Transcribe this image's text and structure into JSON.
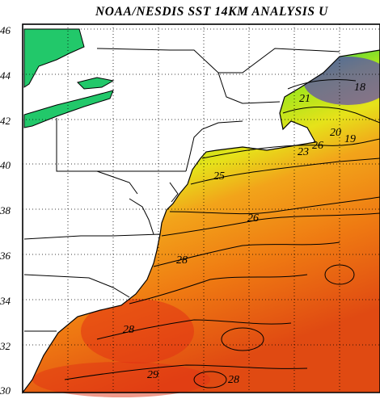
{
  "title": "NOAA/NESDIS SST 14KM ANALYSIS U",
  "lat_labels": [
    "46",
    "44",
    "42",
    "40",
    "38",
    "36",
    "34",
    "32",
    "30"
  ],
  "isotherm_labels": [
    "18",
    "21",
    "23",
    "26",
    "20",
    "19",
    "25",
    "26",
    "28",
    "28",
    "29",
    "28"
  ],
  "colors": {
    "land": "#ffffff",
    "lakes": "#22c86a",
    "border": "#000000",
    "cold": "#3a3af0",
    "cool": "#22b0e8",
    "mild": "#28c850",
    "warm": "#d8f018",
    "hot": "#f08c10",
    "hottest": "#e23214"
  }
}
